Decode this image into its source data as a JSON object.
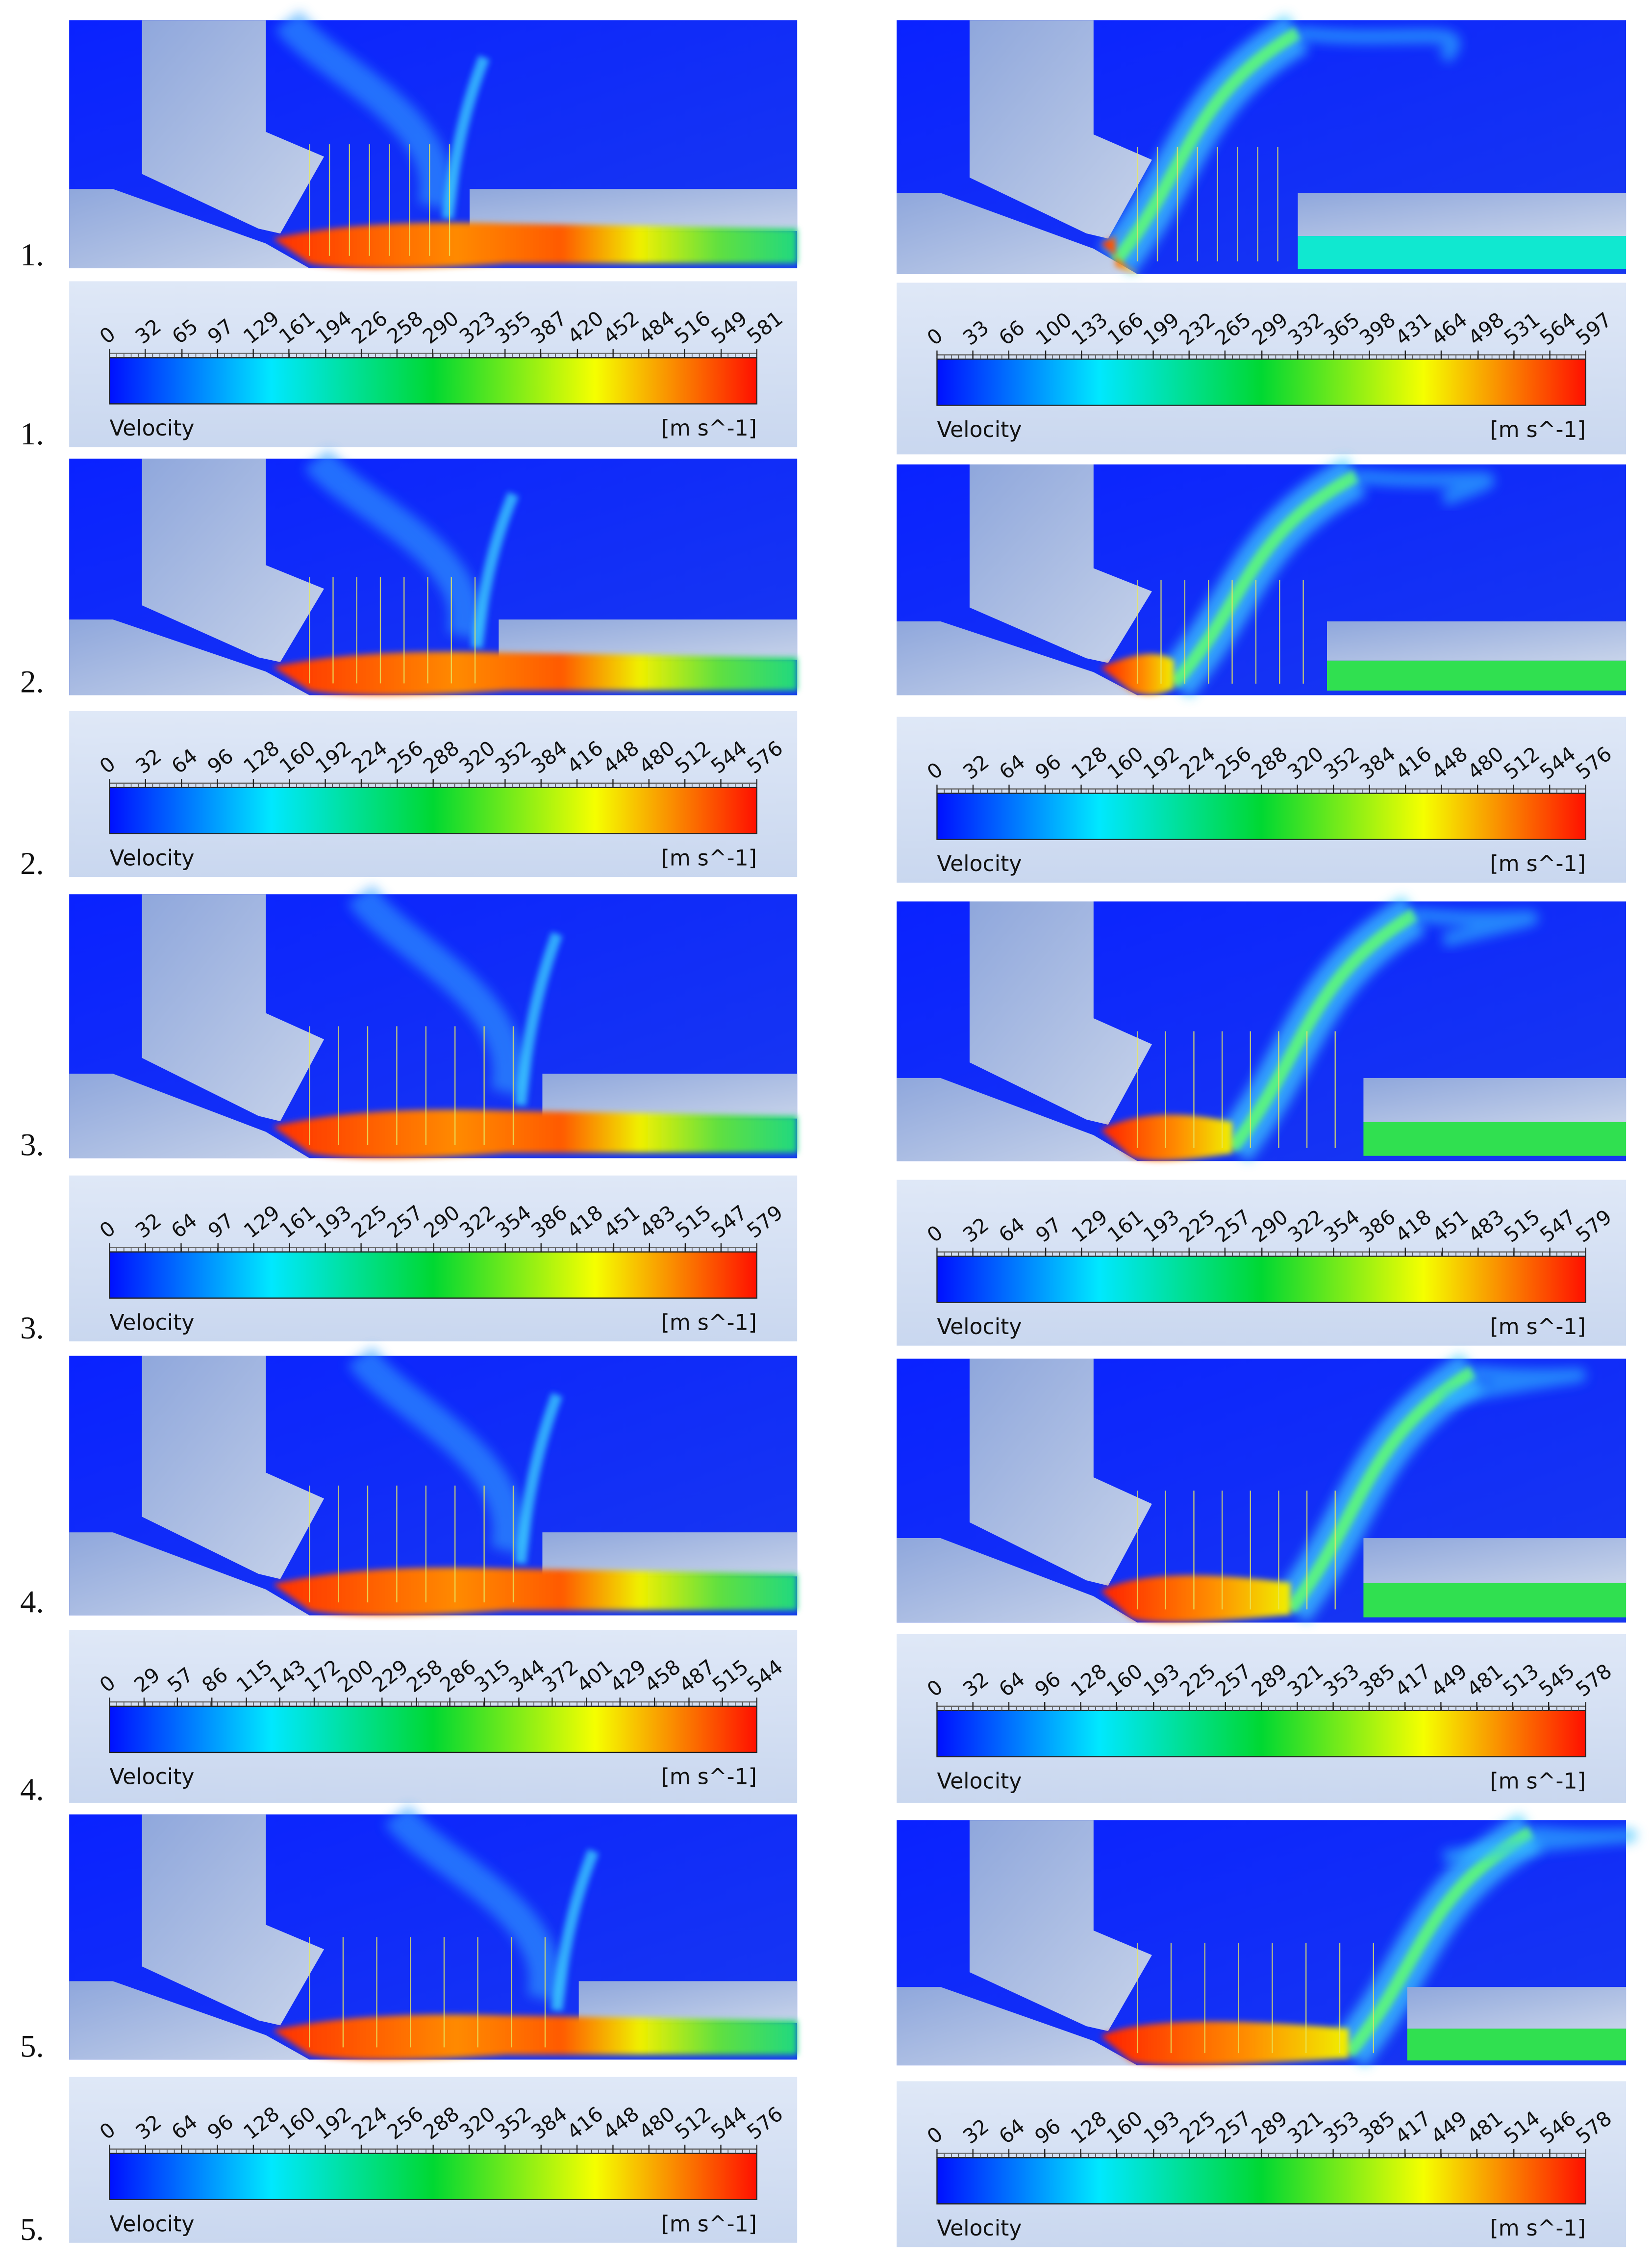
{
  "rows": [
    {
      "label": "1.",
      "left": {
        "colorbar": {
          "title": "Velocity",
          "unit": "[m s^-1]",
          "ticks": [
            0,
            32,
            65,
            97,
            129,
            161,
            194,
            226,
            258,
            290,
            323,
            355,
            387,
            420,
            452,
            484,
            516,
            549,
            581
          ]
        }
      },
      "right": {
        "colorbar": {
          "title": "Velocity",
          "unit": "[m s^-1]",
          "ticks": [
            0,
            33,
            66,
            100,
            133,
            166,
            199,
            232,
            265,
            299,
            332,
            365,
            398,
            431,
            464,
            498,
            531,
            564,
            597
          ]
        }
      }
    },
    {
      "label": "2.",
      "left": {
        "colorbar": {
          "title": "Velocity",
          "unit": "[m s^-1]",
          "ticks": [
            0,
            32,
            64,
            96,
            128,
            160,
            192,
            224,
            256,
            288,
            320,
            352,
            384,
            416,
            448,
            480,
            512,
            544,
            576
          ]
        }
      },
      "right": {
        "colorbar": {
          "title": "Velocity",
          "unit": "[m s^-1]",
          "ticks": [
            0,
            32,
            64,
            96,
            128,
            160,
            192,
            224,
            256,
            288,
            320,
            352,
            384,
            416,
            448,
            480,
            512,
            544,
            576
          ]
        }
      }
    },
    {
      "label": "3.",
      "left": {
        "colorbar": {
          "title": "Velocity",
          "unit": "[m s^-1]",
          "ticks": [
            0,
            32,
            64,
            97,
            129,
            161,
            193,
            225,
            257,
            290,
            322,
            354,
            386,
            418,
            451,
            483,
            515,
            547,
            579
          ]
        }
      },
      "right": {
        "colorbar": {
          "title": "Velocity",
          "unit": "[m s^-1]",
          "ticks": [
            0,
            32,
            64,
            97,
            129,
            161,
            193,
            225,
            257,
            290,
            322,
            354,
            386,
            418,
            451,
            483,
            515,
            547,
            579
          ]
        }
      }
    },
    {
      "label": "4.",
      "left": {
        "colorbar": {
          "title": "Velocity",
          "unit": "[m s^-1]",
          "ticks": [
            0,
            29,
            57,
            86,
            115,
            143,
            172,
            200,
            229,
            258,
            286,
            315,
            344,
            372,
            401,
            429,
            458,
            487,
            515,
            544
          ]
        }
      },
      "right": {
        "colorbar": {
          "title": "Velocity",
          "unit": "[m s^-1]",
          "ticks": [
            0,
            32,
            64,
            96,
            128,
            160,
            193,
            225,
            257,
            289,
            321,
            353,
            385,
            417,
            449,
            481,
            513,
            545,
            578
          ]
        }
      }
    },
    {
      "label": "5.",
      "left": {
        "colorbar": {
          "title": "Velocity",
          "unit": "[m s^-1]",
          "ticks": [
            0,
            32,
            64,
            96,
            128,
            160,
            192,
            224,
            256,
            288,
            320,
            352,
            384,
            416,
            448,
            480,
            512,
            544,
            576
          ]
        }
      },
      "right": {
        "colorbar": {
          "title": "Velocity",
          "unit": "[m s^-1]",
          "ticks": [
            0,
            32,
            64,
            96,
            128,
            160,
            193,
            225,
            257,
            289,
            321,
            353,
            385,
            417,
            449,
            481,
            514,
            546,
            578
          ]
        }
      }
    }
  ]
}
